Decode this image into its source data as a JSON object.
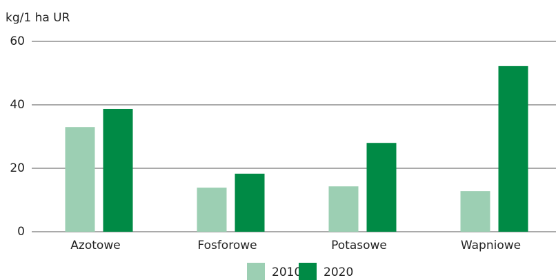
{
  "chart_data": {
    "type": "bar",
    "y_label": "kg/1 ha UR",
    "categories": [
      "Azotowe",
      "Fosforowe",
      "Potasowe",
      "Wapniowe"
    ],
    "series": [
      {
        "name": "2010",
        "color": "#9ccfb3",
        "values": [
          33.0,
          13.9,
          14.3,
          12.8
        ]
      },
      {
        "name": "2020",
        "color": "#008a45",
        "values": [
          38.7,
          18.3,
          28.0,
          52.2
        ]
      }
    ],
    "ylim": [
      0,
      60
    ],
    "yticks": [
      0,
      20,
      40,
      60
    ],
    "grid": true
  }
}
